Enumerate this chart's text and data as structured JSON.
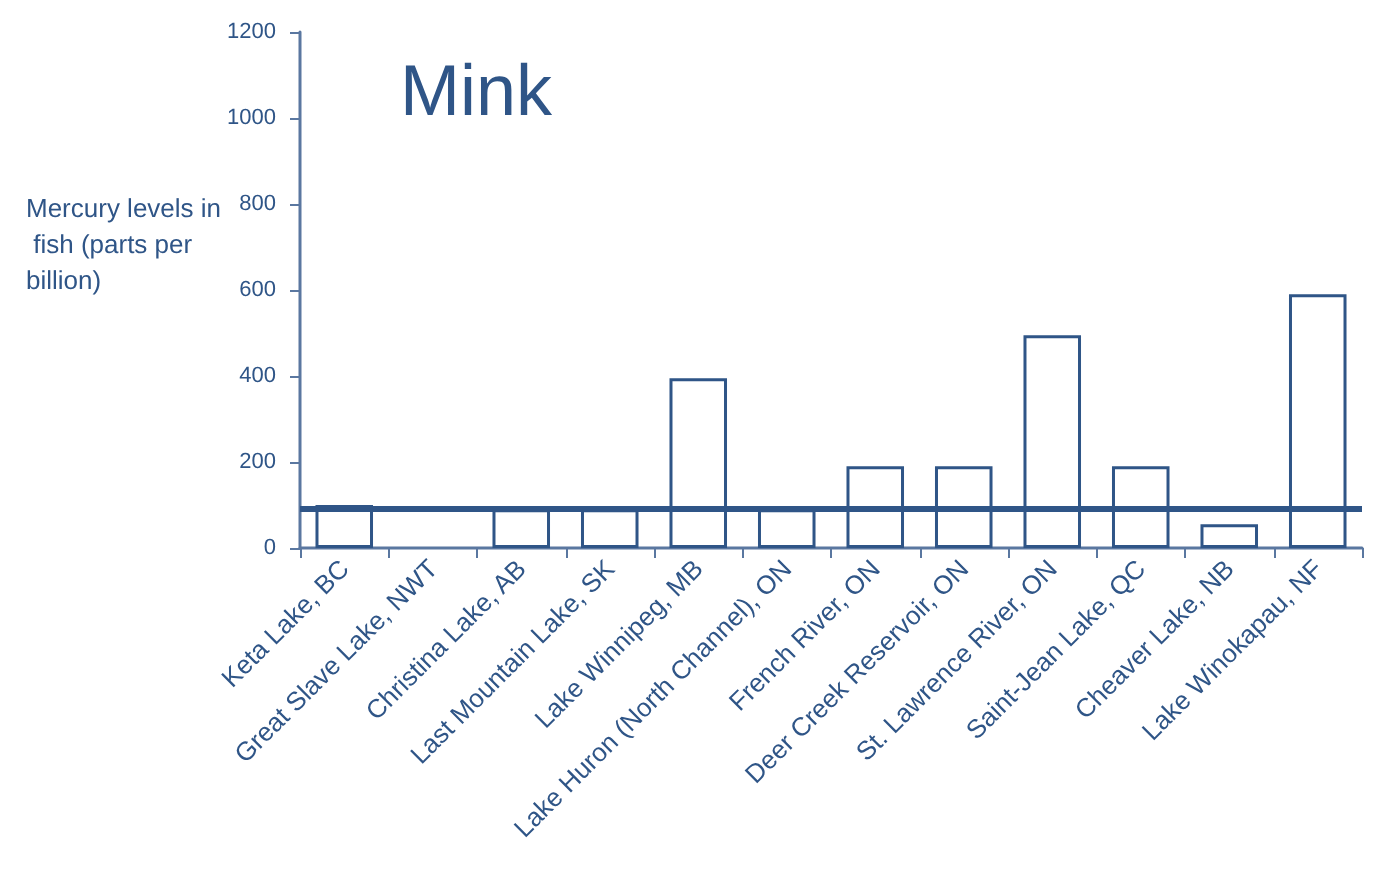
{
  "chart_data": {
    "type": "bar",
    "title": "Mink",
    "ylabel": "Mercury levels in fish (parts per billion)",
    "categories": [
      "Keta Lake, BC",
      "Great Slave Lake, NWT",
      "Christina Lake, AB",
      "Last Mountain Lake, SK",
      "Lake Winnipeg, MB",
      "Lake Huron (North Channel), ON",
      "French River, ON",
      "Deer Creek Reservoir, ON",
      "St. Lawrence River, ON",
      "Saint-Jean Lake, QC",
      "Cheaver Lake, NB",
      "Lake Winokapau, NF"
    ],
    "values": [
      100,
      null,
      90,
      90,
      395,
      90,
      190,
      190,
      495,
      190,
      55,
      590
    ],
    "color": "#2f5587",
    "ylim": [
      0,
      1200
    ],
    "yticks": [
      0,
      200,
      400,
      600,
      800,
      1000,
      1200
    ],
    "ref_lines": [
      {
        "axis": "y",
        "value": 90,
        "color": "#2f5587"
      }
    ]
  }
}
